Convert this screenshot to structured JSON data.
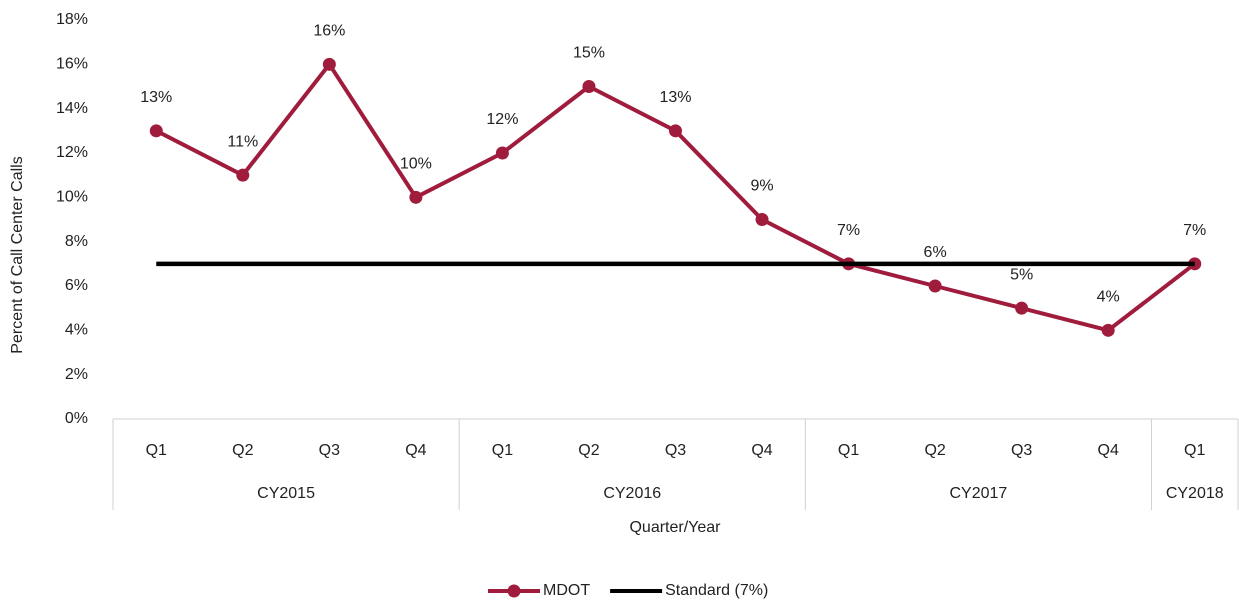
{
  "chart_data": {
    "type": "line",
    "y_axis_label": "Percent of Call Center Calls",
    "x_axis_label": "Quarter/Year",
    "categories": [
      "Q1",
      "Q2",
      "Q3",
      "Q4",
      "Q1",
      "Q2",
      "Q3",
      "Q4",
      "Q1",
      "Q2",
      "Q3",
      "Q4",
      "Q1"
    ],
    "groups": [
      {
        "label": "CY2015",
        "span": 4
      },
      {
        "label": "CY2016",
        "span": 4
      },
      {
        "label": "CY2017",
        "span": 4
      },
      {
        "label": "CY2018",
        "span": 1
      }
    ],
    "series": [
      {
        "name": "MDOT",
        "color": "#a01c3c",
        "marker": true,
        "values": [
          13,
          11,
          16,
          10,
          12,
          15,
          13,
          9,
          7,
          6,
          5,
          4,
          7
        ],
        "value_labels": [
          "13%",
          "11%",
          "16%",
          "10%",
          "12%",
          "15%",
          "13%",
          "9%",
          "7%",
          "6%",
          "5%",
          "4%",
          "7%"
        ]
      },
      {
        "name": "Standard (7%)",
        "color": "#000000",
        "marker": false,
        "values": [
          7,
          7,
          7,
          7,
          7,
          7,
          7,
          7,
          7,
          7,
          7,
          7,
          7
        ]
      }
    ],
    "ylim": [
      0,
      18
    ],
    "yticks": [
      {
        "value": 0,
        "label": "0%"
      },
      {
        "value": 2,
        "label": "2%"
      },
      {
        "value": 4,
        "label": "4%"
      },
      {
        "value": 6,
        "label": "6%"
      },
      {
        "value": 8,
        "label": "8%"
      },
      {
        "value": 10,
        "label": "10%"
      },
      {
        "value": 12,
        "label": "12%"
      },
      {
        "value": 14,
        "label": "14%"
      },
      {
        "value": 16,
        "label": "16%"
      },
      {
        "value": 18,
        "label": "18%"
      }
    ],
    "grid": false,
    "legend": "bottom"
  }
}
